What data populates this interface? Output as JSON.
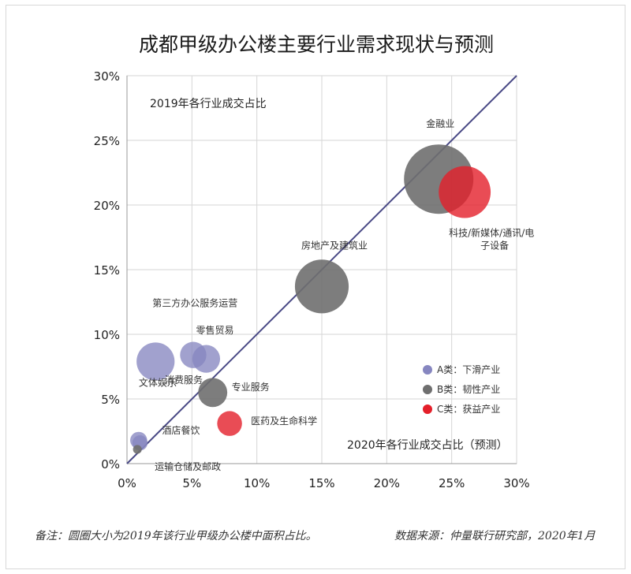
{
  "chart_data": {
    "type": "scatter",
    "title": "成都甲级办公楼主要行业需求现状与预测",
    "xlabel": "2020年各行业成交占比（预测）",
    "ylabel": "2019年各行业成交占比",
    "xlim": [
      0,
      30
    ],
    "ylim": [
      0,
      30
    ],
    "x_ticks": [
      "0%",
      "5%",
      "10%",
      "15%",
      "20%",
      "25%",
      "30%"
    ],
    "y_ticks": [
      "0%",
      "5%",
      "10%",
      "15%",
      "20%",
      "25%",
      "30%"
    ],
    "tick_values": [
      0,
      5,
      10,
      15,
      20,
      25,
      30
    ],
    "grid": true,
    "diagonal_line": true,
    "bubble_size_meaning": "2019年该行业甲级办公楼中面积占比",
    "categories": [
      {
        "key": "A",
        "name": "A类：下滑产业",
        "color": "#8686c0"
      },
      {
        "key": "B",
        "name": "B类：韧性产业",
        "color": "#6f6f6f"
      },
      {
        "key": "C",
        "name": "C类：获益产业",
        "color": "#e41f2a"
      }
    ],
    "legend_position": "right-middle",
    "points": [
      {
        "name": "金融业",
        "x": 24.0,
        "y": 22.0,
        "size": 25.0,
        "category": "B"
      },
      {
        "name": "科技/新媒体/通讯/电子设备",
        "x": 26.0,
        "y": 21.0,
        "size": 14.0,
        "category": "C"
      },
      {
        "name": "房地产及建筑业",
        "x": 15.0,
        "y": 13.7,
        "size": 15.0,
        "category": "B"
      },
      {
        "name": "第三方办公服务运营",
        "x": 2.2,
        "y": 7.9,
        "size": 7.5,
        "category": "A"
      },
      {
        "name": "消费服务",
        "x": 5.1,
        "y": 8.4,
        "size": 3.6,
        "category": "A"
      },
      {
        "name": "零售贸易",
        "x": 6.1,
        "y": 8.1,
        "size": 4.0,
        "category": "A"
      },
      {
        "name": "专业服务",
        "x": 6.6,
        "y": 5.5,
        "size": 4.4,
        "category": "B"
      },
      {
        "name": "医药及生命科学",
        "x": 7.9,
        "y": 3.1,
        "size": 3.2,
        "category": "C"
      },
      {
        "name": "文体娱乐",
        "x": 0.9,
        "y": 1.8,
        "size": 1.5,
        "category": "A"
      },
      {
        "name": "酒店餐饮",
        "x": 1.0,
        "y": 1.6,
        "size": 1.2,
        "category": "A"
      },
      {
        "name": "运输仓储及邮政",
        "x": 0.8,
        "y": 1.1,
        "size": 0.4,
        "category": "B"
      }
    ]
  },
  "footer": {
    "note": "备注：圆圈大小为2019年该行业甲级办公楼中面积占比。",
    "source": "数据来源：仲量联行研究部，2020年1月"
  }
}
